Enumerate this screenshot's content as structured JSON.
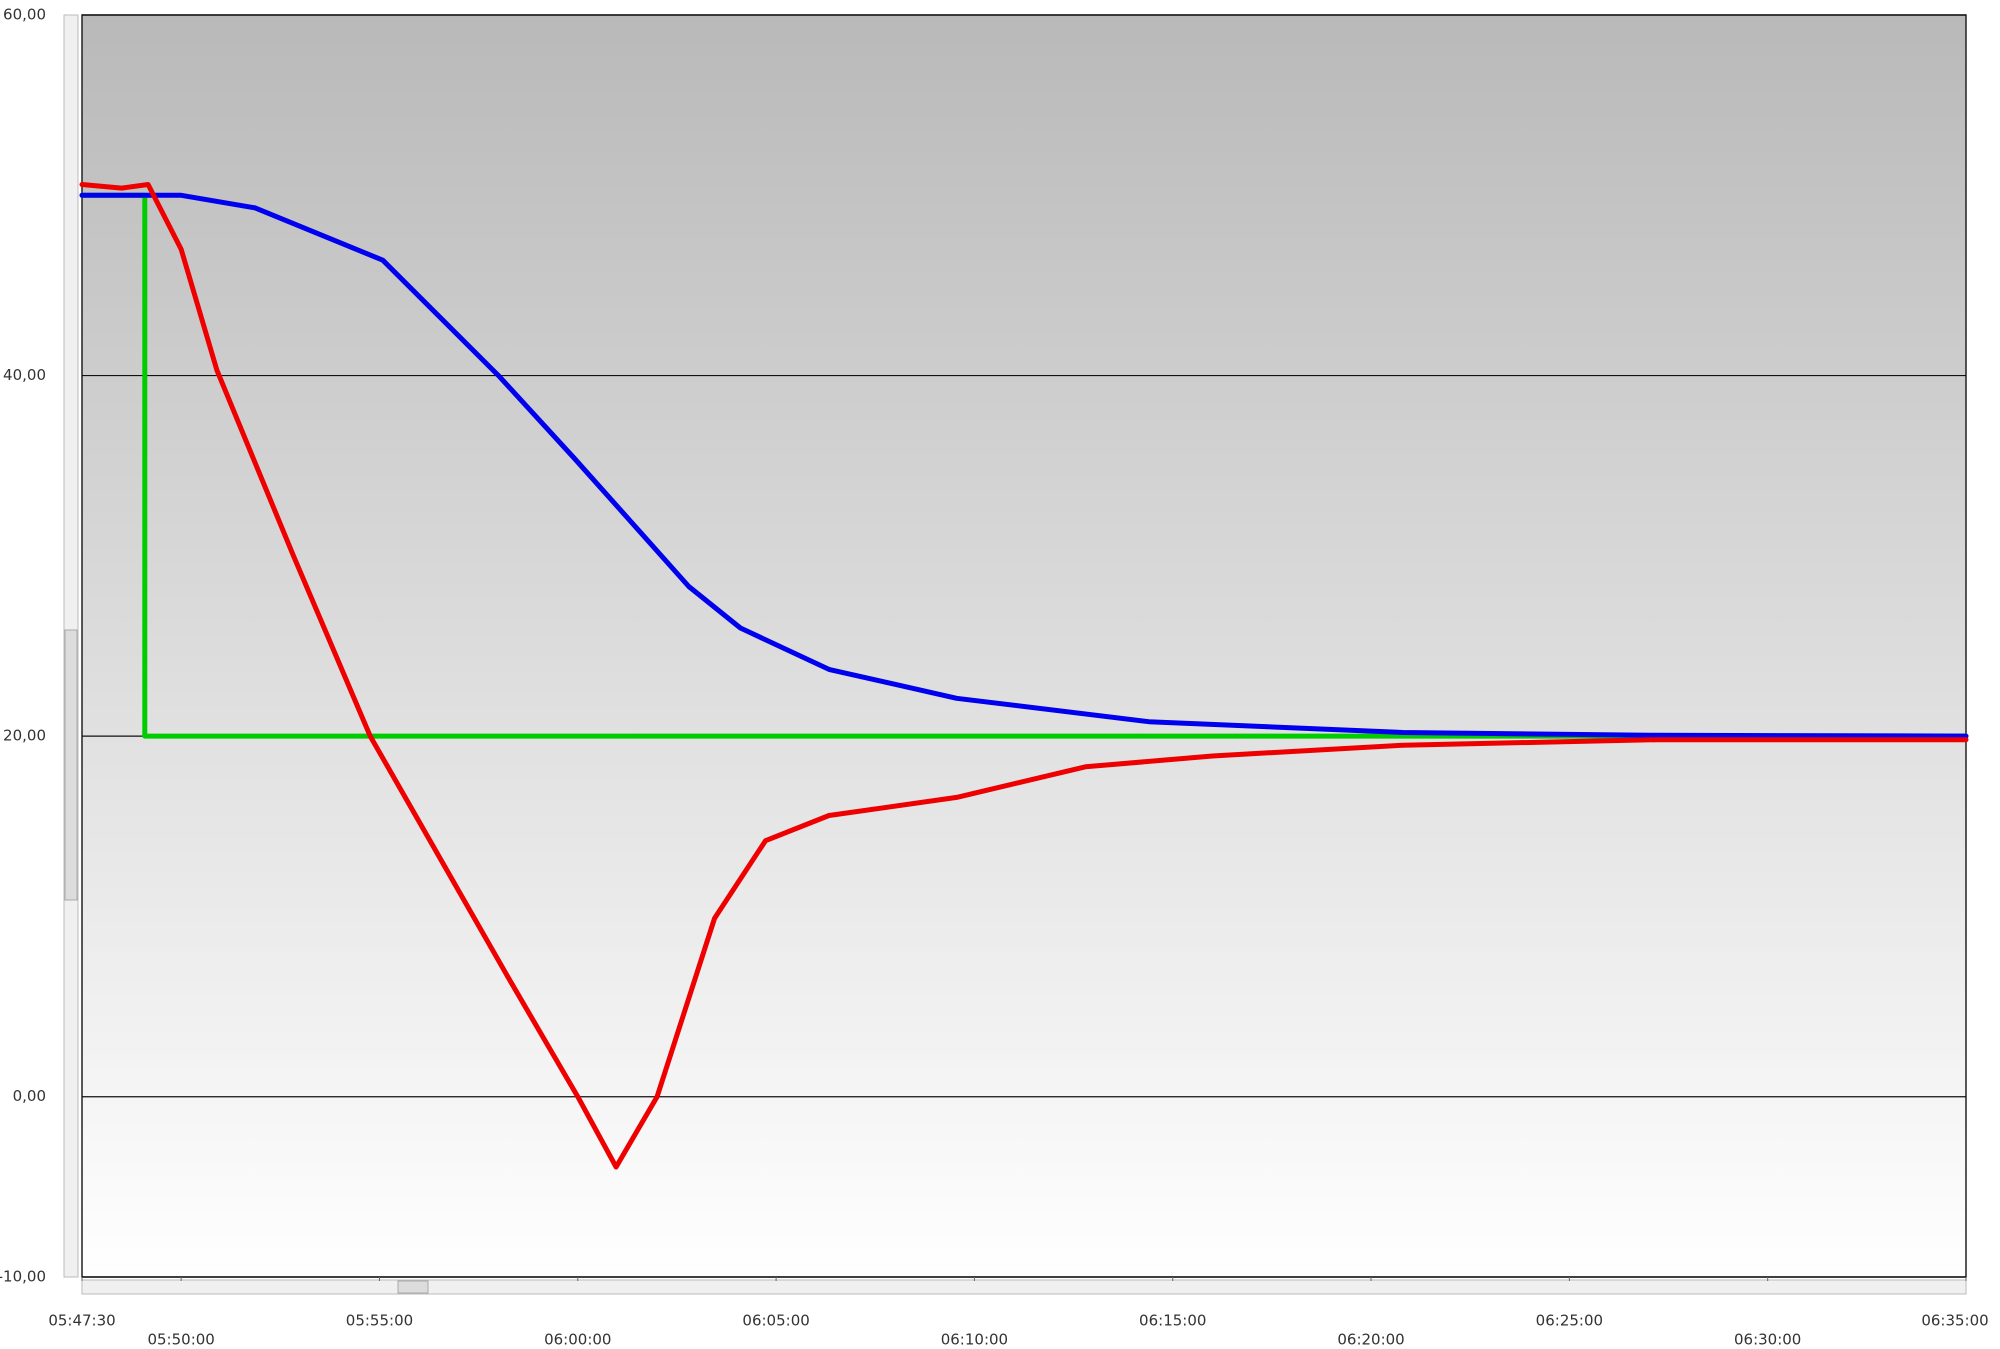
{
  "chart_data": {
    "type": "line",
    "ylim": [
      -10,
      60
    ],
    "yticks": [
      {
        "value": -10,
        "label": "-10,00"
      },
      {
        "value": 0,
        "label": "0,00"
      },
      {
        "value": 20,
        "label": "20,00"
      },
      {
        "value": 40,
        "label": "40,00"
      },
      {
        "value": 60,
        "label": "60,00"
      }
    ],
    "xlim": [
      "05:47:30",
      "06:35:00"
    ],
    "xticks": [
      "05:47:30",
      "05:50:00",
      "05:55:00",
      "06:00:00",
      "06:05:00",
      "06:10:00",
      "06:15:00",
      "06:20:00",
      "06:25:00",
      "06:30:00",
      "06:35:00"
    ],
    "grid": true,
    "series": [
      {
        "color": "#00cc00",
        "x": [
          "05:47:30",
          "05:49:05",
          "05:49:05",
          "06:35:00"
        ],
        "values": [
          50,
          50,
          20,
          20
        ]
      },
      {
        "color": "#0000ee",
        "x": [
          "05:47:30",
          "05:50:00",
          "05:51:52",
          "05:55:05",
          "05:58:00",
          "05:59:55",
          "06:01:30",
          "06:02:48",
          "06:04:06",
          "06:06:20",
          "06:09:33",
          "06:14:24",
          "06:20:48",
          "06:27:00",
          "06:35:00"
        ],
        "values": [
          50,
          50,
          49.3,
          46.4,
          40,
          35.4,
          31.5,
          28.3,
          26.0,
          23.7,
          22.1,
          20.8,
          20.2,
          20.05,
          20
        ]
      },
      {
        "color": "#ee0000",
        "x": [
          "05:47:30",
          "05:48:30",
          "05:49:10",
          "05:50:00",
          "05:50:54",
          "05:52:50",
          "05:54:46",
          "05:58:18",
          "06:00:00",
          "06:00:58",
          "06:02:00",
          "06:03:27",
          "06:04:44",
          "06:06:20",
          "06:09:33",
          "06:12:48",
          "06:16:00",
          "06:20:48",
          "06:27:12",
          "06:35:00"
        ],
        "values": [
          50.6,
          50.4,
          50.6,
          47.0,
          40.3,
          30.0,
          20,
          6.4,
          0,
          -3.9,
          0,
          9.9,
          14.2,
          15.6,
          16.6,
          18.3,
          18.9,
          19.5,
          19.8,
          19.8
        ]
      }
    ]
  }
}
